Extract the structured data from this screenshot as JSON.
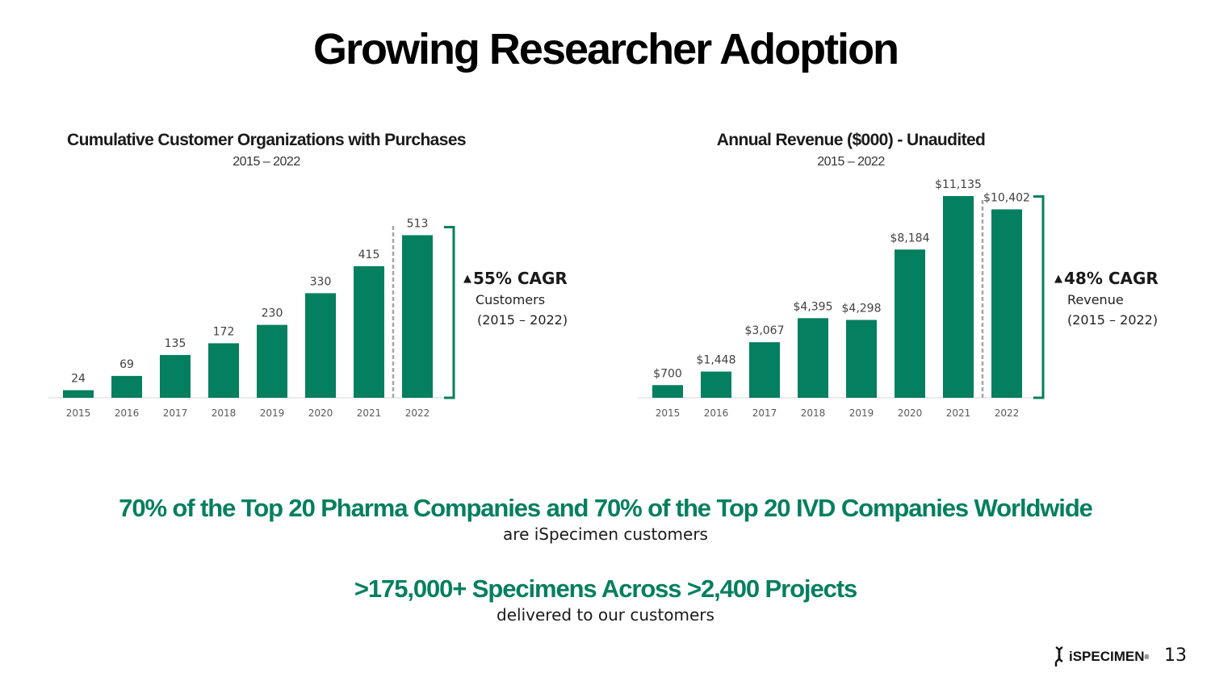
{
  "slide": {
    "title": "Growing Researcher Adoption",
    "page_number": "13",
    "brand": {
      "name": "iSPECIMEN",
      "mark": "®"
    }
  },
  "colors": {
    "bar": "#047f5f",
    "highlight": "#047f5f",
    "divider": "#a6a6a6"
  },
  "left_chart": {
    "subtitle": "2015 – 2022",
    "cagr": {
      "headline": "55% CAGR",
      "line1": "Customers",
      "line2": "(2015 – 2022)"
    }
  },
  "right_chart": {
    "subtitle": "2015 – 2022",
    "cagr": {
      "headline": "48% CAGR",
      "line1": "Revenue",
      "line2": "(2015 – 2022)"
    }
  },
  "highlights": [
    {
      "headline": "70% of the Top 20 Pharma Companies and 70% of the Top 20 IVD Companies Worldwide",
      "sub": "are iSpecimen customers"
    },
    {
      "headline": ">175,000+ Specimens Across >2,400 Projects",
      "sub": "delivered to our customers"
    }
  ],
  "chart_data": [
    {
      "type": "bar",
      "title": "Cumulative Customer Organizations with Purchases",
      "categories": [
        "2015",
        "2016",
        "2017",
        "2018",
        "2019",
        "2020",
        "2021",
        "2022"
      ],
      "values": [
        24,
        69,
        135,
        172,
        230,
        330,
        415,
        513
      ],
      "labels": [
        "24",
        "69",
        "135",
        "172",
        "230",
        "330",
        "415",
        "513"
      ],
      "ylim": [
        0,
        560
      ],
      "xlabel": "",
      "ylabel": "",
      "grid": false,
      "legend": "none"
    },
    {
      "type": "bar",
      "title": "Annual Revenue ($000) - Unaudited",
      "categories": [
        "2015",
        "2016",
        "2017",
        "2018",
        "2019",
        "2020",
        "2021",
        "2022"
      ],
      "values": [
        700,
        1448,
        3067,
        4395,
        4298,
        8184,
        11135,
        10402
      ],
      "labels": [
        "$700",
        "$1,448",
        "$3,067",
        "$4,395",
        "$4,298",
        "$8,184",
        "$11,135",
        "$10,402"
      ],
      "ylim": [
        0,
        11400
      ],
      "xlabel": "",
      "ylabel": "",
      "grid": false,
      "legend": "none"
    }
  ]
}
